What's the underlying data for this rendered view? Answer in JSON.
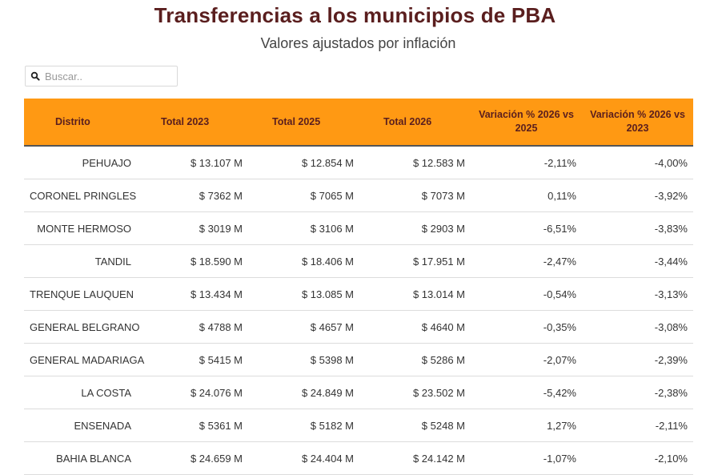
{
  "title": "Transferencias a los municipios de PBA",
  "subtitle": "Valores ajustados por inflación",
  "search": {
    "placeholder": "Buscar..",
    "icon": "search-icon"
  },
  "table": {
    "headers": [
      "Distrito",
      "Total 2023",
      "Total 2025",
      "Total 2026",
      "Variación % 2026 vs 2025",
      "Variación % 2026 vs 2023"
    ],
    "rows": [
      [
        "PEHUAJO",
        "$ 13.107 M",
        "$ 12.854 M",
        "$ 12.583 M",
        "-2,11%",
        "-4,00%"
      ],
      [
        "CORONEL PRINGLES",
        "$ 7362 M",
        "$ 7065 M",
        "$ 7073 M",
        "0,11%",
        "-3,92%"
      ],
      [
        "MONTE HERMOSO",
        "$ 3019 M",
        "$ 3106 M",
        "$ 2903 M",
        "-6,51%",
        "-3,83%"
      ],
      [
        "TANDIL",
        "$ 18.590 M",
        "$ 18.406 M",
        "$ 17.951 M",
        "-2,47%",
        "-3,44%"
      ],
      [
        "TRENQUE LAUQUEN",
        "$ 13.434 M",
        "$ 13.085 M",
        "$ 13.014 M",
        "-0,54%",
        "-3,13%"
      ],
      [
        "GENERAL BELGRANO",
        "$ 4788 M",
        "$ 4657 M",
        "$ 4640 M",
        "-0,35%",
        "-3,08%"
      ],
      [
        "GENERAL MADARIAGA",
        "$ 5415 M",
        "$ 5398 M",
        "$ 5286 M",
        "-2,07%",
        "-2,39%"
      ],
      [
        "LA COSTA",
        "$ 24.076 M",
        "$ 24.849 M",
        "$ 23.502 M",
        "-5,42%",
        "-2,38%"
      ],
      [
        "ENSENADA",
        "$ 5361 M",
        "$ 5182 M",
        "$ 5248 M",
        "1,27%",
        "-2,11%"
      ],
      [
        "BAHIA BLANCA",
        "$ 24.659 M",
        "$ 24.404 M",
        "$ 24.142 M",
        "-1,07%",
        "-2,10%"
      ]
    ]
  },
  "colors": {
    "header_bg": "#ff9913",
    "title": "#5a1e1e"
  }
}
